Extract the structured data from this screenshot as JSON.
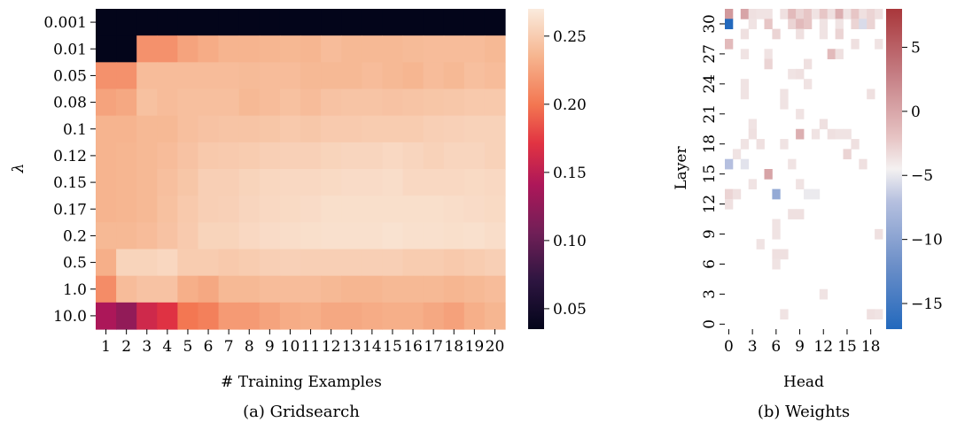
{
  "captions": {
    "a": "(a) Gridsearch",
    "b": "(b) Weights"
  },
  "chart_data": [
    {
      "type": "heatmap",
      "title": "",
      "xlabel": "# Training Examples",
      "ylabel": "λ",
      "x": [
        "1",
        "2",
        "3",
        "4",
        "5",
        "6",
        "7",
        "8",
        "9",
        "10",
        "11",
        "12",
        "13",
        "14",
        "15",
        "16",
        "17",
        "18",
        "19",
        "20"
      ],
      "y": [
        "0.001",
        "0.01",
        "0.05",
        "0.08",
        "0.1",
        "0.12",
        "0.15",
        "0.17",
        "0.2",
        "0.5",
        "1.0",
        "10.0"
      ],
      "colorscale": "rocket",
      "zlim": [
        0.035,
        0.27
      ],
      "colorbar_ticks": [
        0.05,
        0.1,
        0.15,
        0.2,
        0.25
      ],
      "colorbar_tick_labels": [
        "0.05",
        "0.10",
        "0.15",
        "0.20",
        "0.25"
      ],
      "values": [
        [
          0.035,
          0.035,
          0.035,
          0.035,
          0.035,
          0.035,
          0.035,
          0.035,
          0.035,
          0.035,
          0.035,
          0.035,
          0.035,
          0.035,
          0.035,
          0.035,
          0.035,
          0.035,
          0.035,
          0.035
        ],
        [
          0.035,
          0.035,
          0.215,
          0.215,
          0.225,
          0.23,
          0.235,
          0.235,
          0.236,
          0.237,
          0.236,
          0.24,
          0.238,
          0.238,
          0.238,
          0.239,
          0.24,
          0.24,
          0.24,
          0.238
        ],
        [
          0.215,
          0.215,
          0.24,
          0.24,
          0.24,
          0.24,
          0.24,
          0.239,
          0.24,
          0.24,
          0.238,
          0.238,
          0.238,
          0.24,
          0.238,
          0.236,
          0.24,
          0.238,
          0.242,
          0.24
        ],
        [
          0.225,
          0.228,
          0.243,
          0.24,
          0.242,
          0.242,
          0.242,
          0.238,
          0.24,
          0.243,
          0.24,
          0.244,
          0.245,
          0.245,
          0.244,
          0.245,
          0.246,
          0.247,
          0.248,
          0.248
        ],
        [
          0.235,
          0.235,
          0.238,
          0.238,
          0.242,
          0.244,
          0.245,
          0.245,
          0.246,
          0.248,
          0.247,
          0.249,
          0.249,
          0.25,
          0.25,
          0.25,
          0.252,
          0.253,
          0.254,
          0.254
        ],
        [
          0.235,
          0.236,
          0.238,
          0.24,
          0.244,
          0.248,
          0.249,
          0.25,
          0.252,
          0.253,
          0.253,
          0.255,
          0.256,
          0.256,
          0.258,
          0.256,
          0.254,
          0.256,
          0.256,
          0.254
        ],
        [
          0.235,
          0.236,
          0.238,
          0.242,
          0.246,
          0.252,
          0.252,
          0.255,
          0.257,
          0.258,
          0.258,
          0.259,
          0.26,
          0.26,
          0.261,
          0.258,
          0.258,
          0.258,
          0.259,
          0.258
        ],
        [
          0.235,
          0.236,
          0.238,
          0.243,
          0.248,
          0.252,
          0.253,
          0.256,
          0.258,
          0.259,
          0.26,
          0.262,
          0.262,
          0.262,
          0.262,
          0.262,
          0.262,
          0.261,
          0.26,
          0.259
        ],
        [
          0.238,
          0.238,
          0.24,
          0.244,
          0.249,
          0.255,
          0.255,
          0.258,
          0.26,
          0.261,
          0.262,
          0.263,
          0.263,
          0.263,
          0.264,
          0.263,
          0.263,
          0.262,
          0.263,
          0.261
        ],
        [
          0.232,
          0.255,
          0.255,
          0.257,
          0.25,
          0.25,
          0.248,
          0.25,
          0.252,
          0.253,
          0.252,
          0.252,
          0.252,
          0.252,
          0.252,
          0.25,
          0.25,
          0.248,
          0.25,
          0.252
        ],
        [
          0.212,
          0.24,
          0.244,
          0.244,
          0.232,
          0.228,
          0.238,
          0.238,
          0.24,
          0.24,
          0.24,
          0.238,
          0.236,
          0.236,
          0.238,
          0.238,
          0.238,
          0.236,
          0.238,
          0.24
        ],
        [
          0.14,
          0.125,
          0.16,
          0.17,
          0.2,
          0.205,
          0.22,
          0.22,
          0.225,
          0.23,
          0.232,
          0.228,
          0.228,
          0.23,
          0.232,
          0.232,
          0.228,
          0.224,
          0.232,
          0.236
        ]
      ]
    },
    {
      "type": "heatmap",
      "title": "",
      "xlabel": "Head",
      "ylabel": "Layer",
      "x_ticks": [
        0,
        3,
        6,
        9,
        12,
        15,
        18
      ],
      "y_ticks": [
        0,
        3,
        6,
        9,
        12,
        15,
        18,
        21,
        24,
        27,
        30
      ],
      "n_heads": 20,
      "n_layers": 32,
      "colorscale": "vlag",
      "zlim": [
        -17,
        8
      ],
      "colorbar_ticks": [
        5,
        0,
        -5,
        -10,
        -15
      ],
      "colorbar_tick_labels": [
        "5",
        "0",
        "−5",
        "−10",
        "−15"
      ],
      "nonzero_cells": [
        {
          "head": 0,
          "layer": 31,
          "value": 3.5
        },
        {
          "head": 2,
          "layer": 31,
          "value": 3.0
        },
        {
          "head": 3,
          "layer": 31,
          "value": 0.6
        },
        {
          "head": 4,
          "layer": 31,
          "value": 0.5
        },
        {
          "head": 5,
          "layer": 31,
          "value": 0.5
        },
        {
          "head": 7,
          "layer": 31,
          "value": 0.6
        },
        {
          "head": 8,
          "layer": 31,
          "value": 2.0
        },
        {
          "head": 9,
          "layer": 31,
          "value": 1.0
        },
        {
          "head": 10,
          "layer": 31,
          "value": 1.5
        },
        {
          "head": 11,
          "layer": 31,
          "value": 0.5
        },
        {
          "head": 12,
          "layer": 31,
          "value": 1.5
        },
        {
          "head": 13,
          "layer": 31,
          "value": 0.6
        },
        {
          "head": 14,
          "layer": 31,
          "value": 2.5
        },
        {
          "head": 15,
          "layer": 31,
          "value": 0.5
        },
        {
          "head": 16,
          "layer": 31,
          "value": 1.5
        },
        {
          "head": 17,
          "layer": 31,
          "value": 0.6
        },
        {
          "head": 18,
          "layer": 31,
          "value": 1.0
        },
        {
          "head": 19,
          "layer": 31,
          "value": 0.6
        },
        {
          "head": 0,
          "layer": 30,
          "value": -17
        },
        {
          "head": 3,
          "layer": 30,
          "value": 0.5
        },
        {
          "head": 5,
          "layer": 30,
          "value": 1.5
        },
        {
          "head": 8,
          "layer": 30,
          "value": 1.0
        },
        {
          "head": 9,
          "layer": 30,
          "value": 2.0
        },
        {
          "head": 10,
          "layer": 30,
          "value": 1.5
        },
        {
          "head": 12,
          "layer": 30,
          "value": 0.5
        },
        {
          "head": 14,
          "layer": 30,
          "value": 0.5
        },
        {
          "head": 16,
          "layer": 30,
          "value": 1.0
        },
        {
          "head": 17,
          "layer": 30,
          "value": -1.5
        },
        {
          "head": 18,
          "layer": 30,
          "value": 1.0
        },
        {
          "head": 2,
          "layer": 29,
          "value": 0.6
        },
        {
          "head": 6,
          "layer": 29,
          "value": 1.0
        },
        {
          "head": 9,
          "layer": 29,
          "value": 0.6
        },
        {
          "head": 12,
          "layer": 29,
          "value": 0.5
        },
        {
          "head": 14,
          "layer": 29,
          "value": 1.0
        },
        {
          "head": 0,
          "layer": 28,
          "value": 2.0
        },
        {
          "head": 16,
          "layer": 28,
          "value": 0.6
        },
        {
          "head": 19,
          "layer": 28,
          "value": 0.5
        },
        {
          "head": 2,
          "layer": 27,
          "value": 0.5
        },
        {
          "head": 5,
          "layer": 27,
          "value": 0.5
        },
        {
          "head": 13,
          "layer": 27,
          "value": 2.0
        },
        {
          "head": 14,
          "layer": 27,
          "value": 0.6
        },
        {
          "head": 5,
          "layer": 26,
          "value": 1.0
        },
        {
          "head": 10,
          "layer": 26,
          "value": 0.6
        },
        {
          "head": 8,
          "layer": 25,
          "value": 0.5
        },
        {
          "head": 9,
          "layer": 25,
          "value": 0.6
        },
        {
          "head": 2,
          "layer": 24,
          "value": 0.5
        },
        {
          "head": 10,
          "layer": 24,
          "value": 0.5
        },
        {
          "head": 2,
          "layer": 23,
          "value": 0.5
        },
        {
          "head": 7,
          "layer": 23,
          "value": 0.5
        },
        {
          "head": 18,
          "layer": 23,
          "value": 0.6
        },
        {
          "head": 7,
          "layer": 22,
          "value": 0.5
        },
        {
          "head": 9,
          "layer": 21,
          "value": 0.5
        },
        {
          "head": 3,
          "layer": 20,
          "value": 0.5
        },
        {
          "head": 12,
          "layer": 20,
          "value": 0.6
        },
        {
          "head": 3,
          "layer": 19,
          "value": 0.6
        },
        {
          "head": 9,
          "layer": 19,
          "value": 2.5
        },
        {
          "head": 11,
          "layer": 19,
          "value": 0.5
        },
        {
          "head": 13,
          "layer": 19,
          "value": 0.6
        },
        {
          "head": 14,
          "layer": 19,
          "value": 0.5
        },
        {
          "head": 15,
          "layer": 19,
          "value": 0.5
        },
        {
          "head": 2,
          "layer": 18,
          "value": 0.5
        },
        {
          "head": 4,
          "layer": 18,
          "value": 0.6
        },
        {
          "head": 7,
          "layer": 18,
          "value": 0.5
        },
        {
          "head": 16,
          "layer": 18,
          "value": 0.6
        },
        {
          "head": 1,
          "layer": 17,
          "value": 0.5
        },
        {
          "head": 15,
          "layer": 17,
          "value": 1.0
        },
        {
          "head": 0,
          "layer": 16,
          "value": -3.5
        },
        {
          "head": 2,
          "layer": 16,
          "value": -1.0
        },
        {
          "head": 8,
          "layer": 16,
          "value": 0.5
        },
        {
          "head": 17,
          "layer": 16,
          "value": 0.6
        },
        {
          "head": 5,
          "layer": 15,
          "value": 3.0
        },
        {
          "head": 3,
          "layer": 14,
          "value": 0.5
        },
        {
          "head": 9,
          "layer": 14,
          "value": 0.5
        },
        {
          "head": 0,
          "layer": 13,
          "value": 1.0
        },
        {
          "head": 1,
          "layer": 13,
          "value": 0.6
        },
        {
          "head": 6,
          "layer": 13,
          "value": -6.5
        },
        {
          "head": 10,
          "layer": 13,
          "value": -0.5
        },
        {
          "head": 11,
          "layer": 13,
          "value": -0.5
        },
        {
          "head": 0,
          "layer": 12,
          "value": 0.6
        },
        {
          "head": 8,
          "layer": 11,
          "value": 0.6
        },
        {
          "head": 9,
          "layer": 11,
          "value": 0.6
        },
        {
          "head": 6,
          "layer": 10,
          "value": 0.5
        },
        {
          "head": 6,
          "layer": 9,
          "value": 0.5
        },
        {
          "head": 19,
          "layer": 9,
          "value": 0.6
        },
        {
          "head": 4,
          "layer": 8,
          "value": 0.5
        },
        {
          "head": 6,
          "layer": 7,
          "value": 0.6
        },
        {
          "head": 7,
          "layer": 7,
          "value": 0.6
        },
        {
          "head": 6,
          "layer": 6,
          "value": 0.5
        },
        {
          "head": 12,
          "layer": 3,
          "value": 0.5
        },
        {
          "head": 7,
          "layer": 1,
          "value": 0.5
        },
        {
          "head": 18,
          "layer": 1,
          "value": 0.6
        },
        {
          "head": 19,
          "layer": 1,
          "value": 0.5
        }
      ]
    }
  ]
}
